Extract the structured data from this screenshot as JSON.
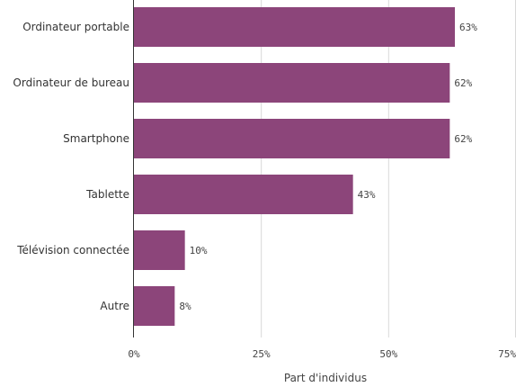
{
  "chart_data": {
    "type": "bar",
    "orientation": "horizontal",
    "categories": [
      "Ordinateur portable",
      "Ordinateur de bureau",
      "Smartphone",
      "Tablette",
      "Télévision connectée",
      "Autre"
    ],
    "values": [
      63,
      62,
      62,
      43,
      10,
      8
    ],
    "value_labels": [
      "63%",
      "62%",
      "62%",
      "43%",
      "10%",
      "8%"
    ],
    "xlabel": "Part d'individus",
    "ylabel": "",
    "xlim": [
      0,
      75
    ],
    "x_ticks": [
      0,
      25,
      50,
      75
    ],
    "x_tick_labels": [
      "0%",
      "25%",
      "50%",
      "75%"
    ],
    "grid": true,
    "colors": {
      "bar": "#8c457a"
    }
  }
}
